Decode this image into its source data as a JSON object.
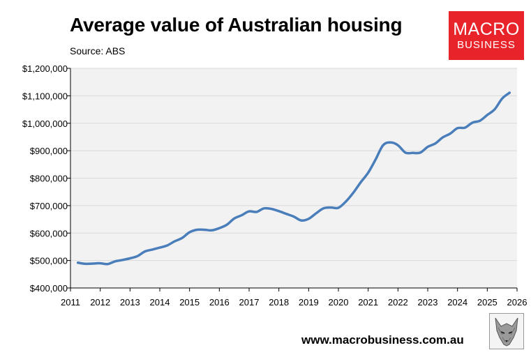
{
  "header": {
    "title": "Average value of Australian housing",
    "source": "Source: ABS"
  },
  "logo": {
    "line1": "MACRO",
    "line2": "BUSINESS"
  },
  "footer": {
    "url": "www.macrobusiness.com.au"
  },
  "colors": {
    "line": "#4a7ebb",
    "plot_bg": "#f2f2f2",
    "logo_bg": "#e8232a"
  },
  "chart_data": {
    "type": "line",
    "title": "Average value of Australian housing",
    "subtitle": "Source: ABS",
    "xlabel": "",
    "ylabel": "",
    "xlim": [
      2011,
      2026
    ],
    "ylim": [
      400000,
      1200000
    ],
    "x_ticks": [
      "2011",
      "2012",
      "2013",
      "2014",
      "2015",
      "2016",
      "2017",
      "2018",
      "2019",
      "2020",
      "2021",
      "2022",
      "2023",
      "2024",
      "2025",
      "2026"
    ],
    "y_ticks": [
      "$400,000",
      "$500,000",
      "$600,000",
      "$700,000",
      "$800,000",
      "$900,000",
      "$1,000,000",
      "$1,100,000",
      "$1,200,000"
    ],
    "grid": {
      "horizontal": true,
      "vertical": false
    },
    "legend": "none",
    "series": [
      {
        "x": [
          2011.25,
          2011.5,
          2011.75,
          2012.0,
          2012.25,
          2012.5,
          2012.75,
          2013.0,
          2013.25,
          2013.5,
          2013.75,
          2014.0,
          2014.25,
          2014.5,
          2014.75,
          2015.0,
          2015.25,
          2015.5,
          2015.75,
          2016.0,
          2016.25,
          2016.5,
          2016.75,
          2017.0,
          2017.25,
          2017.5,
          2017.75,
          2018.0,
          2018.25,
          2018.5,
          2018.75,
          2019.0,
          2019.25,
          2019.5,
          2019.75,
          2020.0,
          2020.25,
          2020.5,
          2020.75,
          2021.0,
          2021.25,
          2021.5,
          2021.75,
          2022.0,
          2022.25,
          2022.5,
          2022.75,
          2023.0,
          2023.25,
          2023.5,
          2023.75,
          2024.0,
          2024.25,
          2024.5,
          2024.75,
          2025.0,
          2025.25,
          2025.5,
          2025.75
        ],
        "y": [
          492000,
          488000,
          489000,
          490000,
          487000,
          497000,
          502000,
          508000,
          516000,
          533000,
          540000,
          547000,
          555000,
          570000,
          582000,
          603000,
          612000,
          612000,
          610000,
          618000,
          630000,
          653000,
          665000,
          679000,
          677000,
          690000,
          688000,
          680000,
          670000,
          660000,
          646000,
          652000,
          672000,
          690000,
          693000,
          692000,
          715000,
          747000,
          785000,
          820000,
          868000,
          920000,
          930000,
          920000,
          893000,
          892000,
          893000,
          914000,
          926000,
          948000,
          962000,
          982000,
          984000,
          1002000,
          1009000,
          1030000,
          1051000,
          1090000,
          1111000
        ]
      }
    ]
  }
}
